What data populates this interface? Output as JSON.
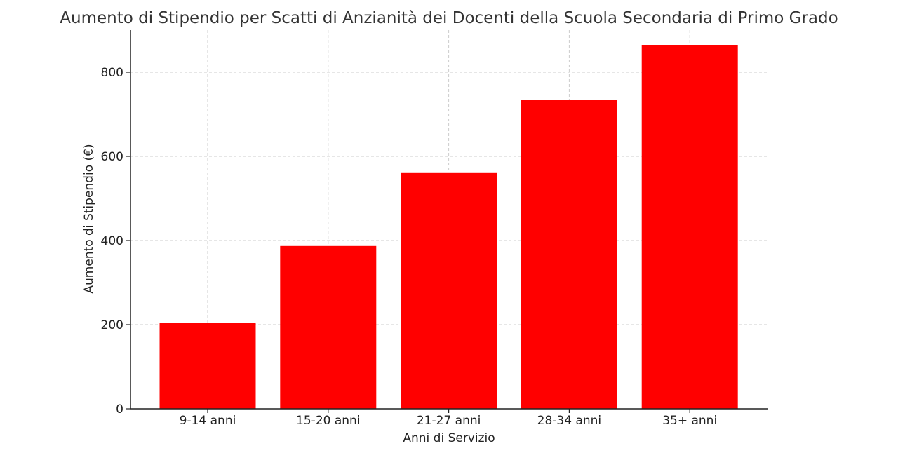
{
  "chart_data": {
    "type": "bar",
    "title": "Aumento di Stipendio per Scatti di Anzianità dei Docenti della Scuola Secondaria di Primo Grado",
    "xlabel": "Anni di Servizio",
    "ylabel": "Aumento di Stipendio (€)",
    "categories": [
      "9-14 anni",
      "15-20 anni",
      "21-27 anni",
      "28-34 anni",
      "35+ anni"
    ],
    "values": [
      205,
      387,
      562,
      735,
      865
    ],
    "ylim": [
      0,
      900
    ],
    "yticks": [
      0,
      200,
      400,
      600,
      800
    ],
    "grid": true,
    "legend": "none",
    "bar_color": "#ff0000"
  }
}
